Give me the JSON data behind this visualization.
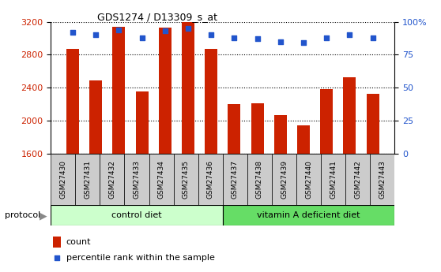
{
  "title": "GDS1274 / D13309_s_at",
  "samples": [
    "GSM27430",
    "GSM27431",
    "GSM27432",
    "GSM27433",
    "GSM27434",
    "GSM27435",
    "GSM27436",
    "GSM27437",
    "GSM27438",
    "GSM27439",
    "GSM27440",
    "GSM27441",
    "GSM27442",
    "GSM27443"
  ],
  "counts": [
    2870,
    2490,
    3140,
    2350,
    3130,
    3200,
    2870,
    2200,
    2210,
    2070,
    1940,
    2380,
    2530,
    2330
  ],
  "percentile_ranks": [
    92,
    90,
    94,
    88,
    93,
    95,
    90,
    88,
    87,
    85,
    84,
    88,
    90,
    88
  ],
  "control_diet_count": 7,
  "ylim_left": [
    1600,
    3200
  ],
  "ylim_right": [
    0,
    100
  ],
  "yticks_left": [
    1600,
    2000,
    2400,
    2800,
    3200
  ],
  "yticks_right": [
    0,
    25,
    50,
    75,
    100
  ],
  "bar_color": "#cc2200",
  "dot_color": "#2255cc",
  "control_color": "#ccffcc",
  "vitaminA_color": "#66dd66",
  "label_bg_color": "#cccccc",
  "control_label": "control diet",
  "vitaminA_label": "vitamin A deficient diet",
  "legend_count_label": "count",
  "legend_percentile_label": "percentile rank within the sample"
}
